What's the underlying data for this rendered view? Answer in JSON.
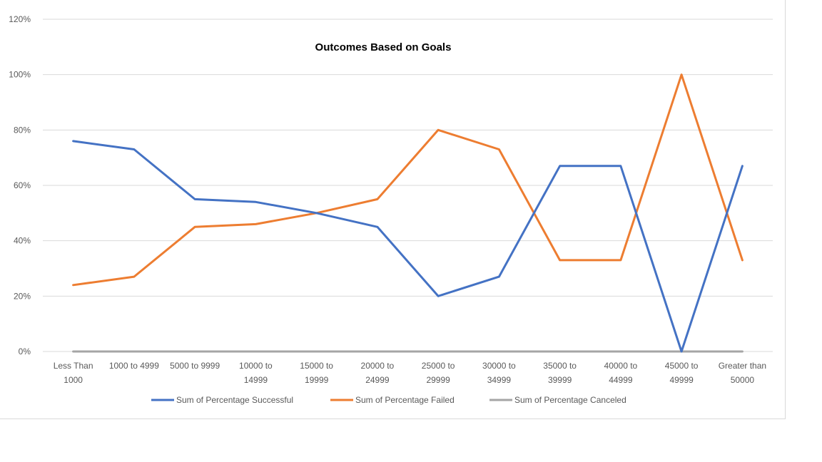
{
  "chart_data": {
    "type": "line",
    "title": "Outcomes Based on Goals",
    "xlabel": "",
    "ylabel": "",
    "ylim": [
      0,
      1.2
    ],
    "y_ticks": [
      0,
      0.2,
      0.4,
      0.6,
      0.8,
      1.0,
      1.2
    ],
    "y_tick_labels": [
      "0%",
      "20%",
      "40%",
      "60%",
      "80%",
      "100%",
      "120%"
    ],
    "grid": true,
    "legend_position": "bottom",
    "categories": [
      [
        "Less Than",
        "1000"
      ],
      [
        "1000 to 4999"
      ],
      [
        "5000 to 9999"
      ],
      [
        "10000 to",
        "14999"
      ],
      [
        "15000 to",
        "19999"
      ],
      [
        "20000 to",
        "24999"
      ],
      [
        "25000 to",
        "29999"
      ],
      [
        "30000 to",
        "34999"
      ],
      [
        "35000 to",
        "39999"
      ],
      [
        "40000 to",
        "44999"
      ],
      [
        "45000 to",
        "49999"
      ],
      [
        "Greater than",
        "50000"
      ]
    ],
    "series": [
      {
        "name": "Sum of Percentage Successful",
        "color": "#4472c4",
        "values": [
          0.76,
          0.73,
          0.55,
          0.54,
          0.5,
          0.45,
          0.2,
          0.27,
          0.67,
          0.67,
          0.0,
          0.67
        ]
      },
      {
        "name": "Sum of Percentage Failed",
        "color": "#ed7d31",
        "values": [
          0.24,
          0.27,
          0.45,
          0.46,
          0.5,
          0.55,
          0.8,
          0.73,
          0.33,
          0.33,
          1.0,
          0.33
        ]
      },
      {
        "name": "Sum of Percentage Canceled",
        "color": "#a5a5a5",
        "values": [
          0,
          0,
          0,
          0,
          0,
          0,
          0,
          0,
          0,
          0,
          0,
          0
        ]
      }
    ]
  }
}
